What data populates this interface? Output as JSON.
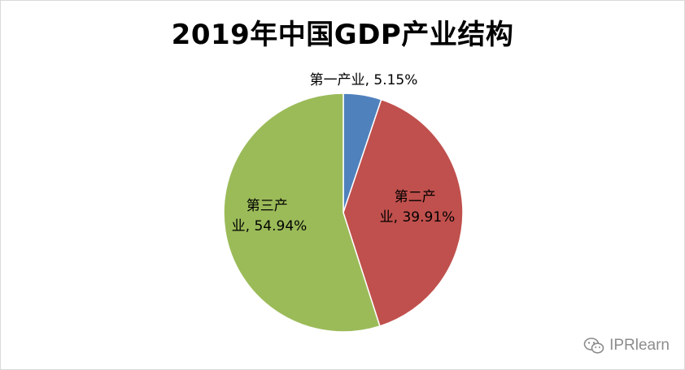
{
  "chart_data": {
    "type": "pie",
    "title": "2019年中国GDP产业结构",
    "slices": [
      {
        "label": "第一产业",
        "value": 5.15,
        "display": "第一产业, 5.15%",
        "color": "#4f81bd"
      },
      {
        "label": "第二产业",
        "value": 39.91,
        "display": "第二产业, 39.91%",
        "color": "#c0504d"
      },
      {
        "label": "第三产业",
        "value": 54.94,
        "display": "第三产业, 54.94%",
        "color": "#9bbb59"
      }
    ],
    "start_angle_deg": 0,
    "direction": "clockwise",
    "legend": "none"
  },
  "watermark": {
    "text": "IPRlearn",
    "icon": "wechat-icon"
  }
}
